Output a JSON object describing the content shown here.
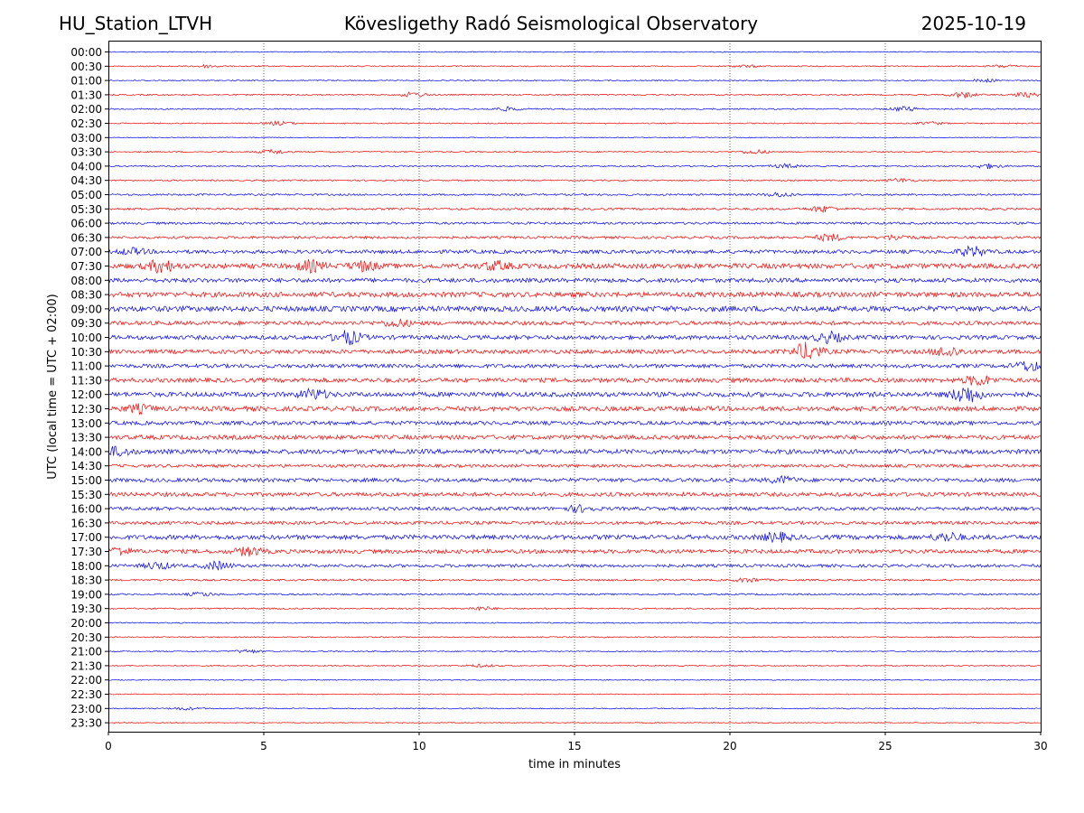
{
  "header": {
    "station": "HU_Station_LTVH",
    "observatory": "Kövesligethy Radó Seismological Observatory",
    "date": "2025-10-19"
  },
  "chart_data": {
    "type": "line",
    "title": "Kövesligethy Radó Seismological Observatory",
    "xlabel": "time in minutes",
    "ylabel": "UTC (local time = UTC + 02:00)",
    "xlim": [
      0,
      30
    ],
    "x_ticks": [
      0,
      5,
      10,
      15,
      20,
      25,
      30
    ],
    "x_gridlines": [
      5,
      10,
      15,
      20,
      25
    ],
    "series_colors": [
      "#0000ff",
      "#ff0000"
    ],
    "rows": [
      {
        "label": "00:00",
        "amp": 0.5
      },
      {
        "label": "00:30",
        "amp": 0.6
      },
      {
        "label": "01:00",
        "amp": 0.6
      },
      {
        "label": "01:30",
        "amp": 0.7
      },
      {
        "label": "02:00",
        "amp": 0.7
      },
      {
        "label": "02:30",
        "amp": 0.6
      },
      {
        "label": "03:00",
        "amp": 0.5
      },
      {
        "label": "03:30",
        "amp": 0.7
      },
      {
        "label": "04:00",
        "amp": 0.8
      },
      {
        "label": "04:30",
        "amp": 0.8
      },
      {
        "label": "05:00",
        "amp": 1.0
      },
      {
        "label": "05:30",
        "amp": 1.2
      },
      {
        "label": "06:00",
        "amp": 1.3
      },
      {
        "label": "06:30",
        "amp": 1.4
      },
      {
        "label": "07:00",
        "amp": 2.0
      },
      {
        "label": "07:30",
        "amp": 2.8
      },
      {
        "label": "08:00",
        "amp": 2.3
      },
      {
        "label": "08:30",
        "amp": 2.8
      },
      {
        "label": "09:00",
        "amp": 3.0
      },
      {
        "label": "09:30",
        "amp": 2.2
      },
      {
        "label": "10:00",
        "amp": 2.3
      },
      {
        "label": "10:30",
        "amp": 2.3
      },
      {
        "label": "11:00",
        "amp": 2.1
      },
      {
        "label": "11:30",
        "amp": 2.4
      },
      {
        "label": "12:00",
        "amp": 2.6
      },
      {
        "label": "12:30",
        "amp": 2.6
      },
      {
        "label": "13:00",
        "amp": 2.1
      },
      {
        "label": "13:30",
        "amp": 2.4
      },
      {
        "label": "14:00",
        "amp": 2.5
      },
      {
        "label": "14:30",
        "amp": 1.7
      },
      {
        "label": "15:00",
        "amp": 2.1
      },
      {
        "label": "15:30",
        "amp": 2.2
      },
      {
        "label": "16:00",
        "amp": 1.9
      },
      {
        "label": "16:30",
        "amp": 1.8
      },
      {
        "label": "17:00",
        "amp": 2.5
      },
      {
        "label": "17:30",
        "amp": 2.2
      },
      {
        "label": "18:00",
        "amp": 1.7
      },
      {
        "label": "18:30",
        "amp": 1.0
      },
      {
        "label": "19:00",
        "amp": 0.9
      },
      {
        "label": "19:30",
        "amp": 0.8
      },
      {
        "label": "20:00",
        "amp": 0.6
      },
      {
        "label": "20:30",
        "amp": 0.6
      },
      {
        "label": "21:00",
        "amp": 0.6
      },
      {
        "label": "21:30",
        "amp": 0.6
      },
      {
        "label": "22:00",
        "amp": 0.5
      },
      {
        "label": "22:30",
        "amp": 0.5
      },
      {
        "label": "23:00",
        "amp": 0.6
      },
      {
        "label": "23:30",
        "amp": 0.5
      }
    ],
    "events": [
      {
        "row": "00:30",
        "t": 3.2,
        "amp": 1.5
      },
      {
        "row": "00:30",
        "t": 20.5,
        "amp": 1.2
      },
      {
        "row": "00:30",
        "t": 28.8,
        "amp": 1.4
      },
      {
        "row": "01:00",
        "t": 28.2,
        "amp": 1.6
      },
      {
        "row": "01:30",
        "t": 9.8,
        "amp": 2.5
      },
      {
        "row": "01:30",
        "t": 27.5,
        "amp": 3.0
      },
      {
        "row": "01:30",
        "t": 29.5,
        "amp": 2.5
      },
      {
        "row": "02:00",
        "t": 12.8,
        "amp": 2.0
      },
      {
        "row": "02:00",
        "t": 25.6,
        "amp": 2.5
      },
      {
        "row": "02:30",
        "t": 5.5,
        "amp": 2.0
      },
      {
        "row": "02:30",
        "t": 26.5,
        "amp": 1.5
      },
      {
        "row": "03:30",
        "t": 5.3,
        "amp": 2.2
      },
      {
        "row": "03:30",
        "t": 20.8,
        "amp": 2.2
      },
      {
        "row": "04:00",
        "t": 21.8,
        "amp": 2.0
      },
      {
        "row": "04:00",
        "t": 28.3,
        "amp": 2.5
      },
      {
        "row": "04:30",
        "t": 25.5,
        "amp": 2.0
      },
      {
        "row": "05:00",
        "t": 21.6,
        "amp": 2.2
      },
      {
        "row": "05:30",
        "t": 23.0,
        "amp": 3.0
      },
      {
        "row": "06:30",
        "t": 23.2,
        "amp": 3.5
      },
      {
        "row": "06:30",
        "t": 25.4,
        "amp": 2.5
      },
      {
        "row": "07:00",
        "t": 0.8,
        "amp": 3.0
      },
      {
        "row": "07:00",
        "t": 27.8,
        "amp": 5.0
      },
      {
        "row": "07:30",
        "t": 1.7,
        "amp": 6.0
      },
      {
        "row": "07:30",
        "t": 6.5,
        "amp": 5.0
      },
      {
        "row": "07:30",
        "t": 8.2,
        "amp": 4.5
      },
      {
        "row": "07:30",
        "t": 12.5,
        "amp": 4.0
      },
      {
        "row": "09:30",
        "t": 9.3,
        "amp": 3.5
      },
      {
        "row": "10:00",
        "t": 7.7,
        "amp": 7.0
      },
      {
        "row": "10:00",
        "t": 23.2,
        "amp": 5.0
      },
      {
        "row": "10:30",
        "t": 22.5,
        "amp": 9.0
      },
      {
        "row": "10:30",
        "t": 27.0,
        "amp": 5.0
      },
      {
        "row": "11:00",
        "t": 29.6,
        "amp": 5.0
      },
      {
        "row": "11:30",
        "t": 28.0,
        "amp": 5.0
      },
      {
        "row": "12:00",
        "t": 6.6,
        "amp": 5.0
      },
      {
        "row": "12:00",
        "t": 27.6,
        "amp": 9.0
      },
      {
        "row": "12:30",
        "t": 1.0,
        "amp": 3.5
      },
      {
        "row": "14:00",
        "t": 0.3,
        "amp": 4.0
      },
      {
        "row": "15:00",
        "t": 21.7,
        "amp": 3.0
      },
      {
        "row": "16:00",
        "t": 15.2,
        "amp": 3.0
      },
      {
        "row": "17:00",
        "t": 21.5,
        "amp": 4.0
      },
      {
        "row": "17:00",
        "t": 27.0,
        "amp": 4.0
      },
      {
        "row": "17:30",
        "t": 0.3,
        "amp": 4.0
      },
      {
        "row": "17:30",
        "t": 4.5,
        "amp": 4.0
      },
      {
        "row": "18:00",
        "t": 1.6,
        "amp": 3.5
      },
      {
        "row": "18:00",
        "t": 3.5,
        "amp": 4.0
      },
      {
        "row": "18:30",
        "t": 20.6,
        "amp": 2.0
      },
      {
        "row": "19:00",
        "t": 3.0,
        "amp": 2.0
      },
      {
        "row": "19:30",
        "t": 12.0,
        "amp": 1.8
      },
      {
        "row": "21:00",
        "t": 4.5,
        "amp": 1.8
      },
      {
        "row": "21:30",
        "t": 12.0,
        "amp": 1.5
      },
      {
        "row": "23:00",
        "t": 2.5,
        "amp": 1.5
      }
    ]
  }
}
